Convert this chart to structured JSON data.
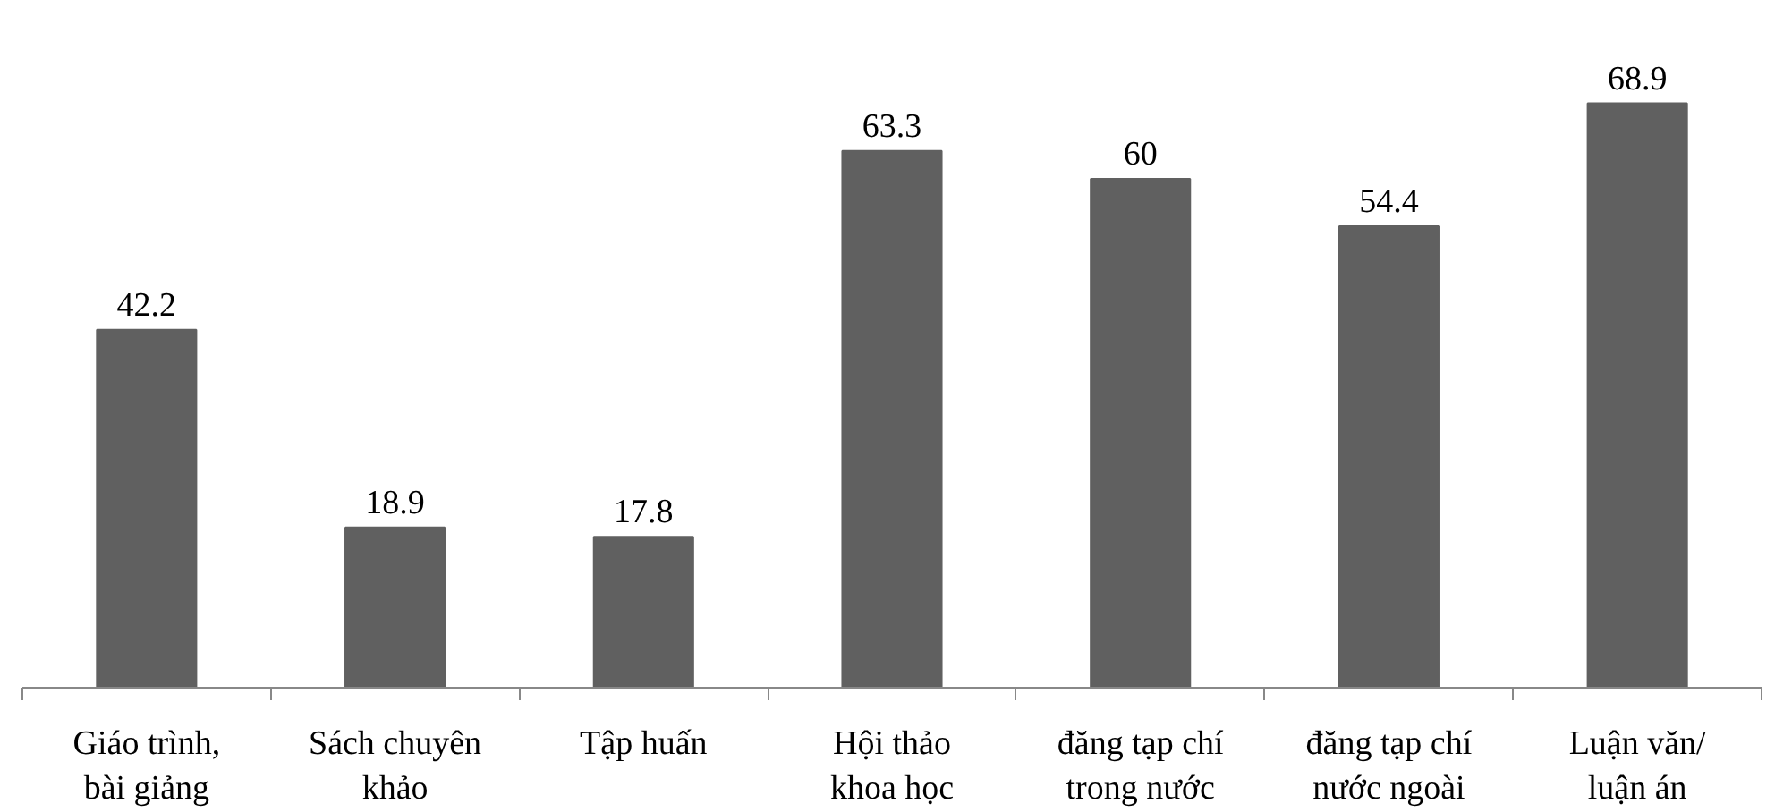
{
  "chart_data": {
    "type": "bar",
    "categories": [
      "Giáo trình,\nbài giảng",
      "Sách chuyên\nkhảo",
      "Tập huấn",
      "Hội thảo\nkhoa học",
      "đăng tạp chí\ntrong nước",
      "đăng tạp chí\nnước ngoài",
      "Luận văn/\nluận án"
    ],
    "values": [
      42.2,
      18.9,
      17.8,
      63.3,
      60,
      54.4,
      68.9
    ],
    "color": "#606060",
    "data_labels": true,
    "grid": false
  }
}
